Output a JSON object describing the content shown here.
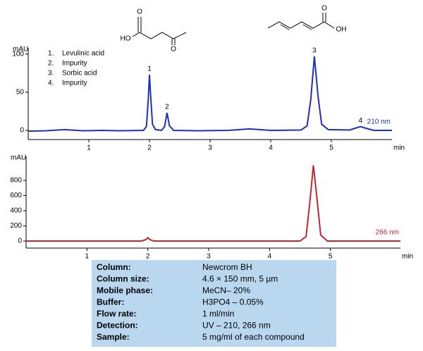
{
  "chart_data": [
    {
      "type": "line",
      "ylabel": "mAU",
      "xlabel": "min",
      "x": [
        0,
        0.3,
        0.6,
        0.9,
        1.2,
        1.5,
        1.9,
        1.95,
        1.98,
        2.0,
        2.02,
        2.05,
        2.1,
        2.2,
        2.25,
        2.29,
        2.33,
        2.4,
        2.8,
        3.3,
        3.65,
        4.0,
        4.5,
        4.6,
        4.66,
        4.72,
        4.78,
        4.84,
        4.95,
        5.3,
        5.4,
        5.48,
        5.56,
        5.7,
        6.0
      ],
      "series": [
        {
          "name": "210 nm",
          "color": "#1f2fbf",
          "values": [
            -1,
            -0.5,
            1,
            -0.5,
            0,
            -0.5,
            0,
            5,
            40,
            73,
            45,
            8,
            1,
            0,
            5,
            23,
            6,
            0,
            -0.5,
            0,
            2,
            0,
            0.5,
            6,
            40,
            97,
            45,
            8,
            1,
            0.5,
            3,
            5,
            3,
            0,
            0
          ]
        }
      ],
      "xlim": [
        0,
        6
      ],
      "xticks": [
        1,
        2,
        3,
        4,
        5
      ],
      "ylim": [
        -12,
        108
      ],
      "yticks": [
        0,
        50,
        100
      ],
      "annotations": [
        {
          "text": "1",
          "x": 2.0,
          "y": 73
        },
        {
          "text": "2",
          "x": 2.29,
          "y": 23
        },
        {
          "text": "3",
          "x": 4.72,
          "y": 97
        },
        {
          "text": "4",
          "x": 5.48,
          "y": 5
        }
      ],
      "peak_list": [
        {
          "label": "1.",
          "name": "Levulinic acid"
        },
        {
          "label": "2.",
          "name": "Impurity"
        },
        {
          "label": "3.",
          "name": "Sorbic acid"
        },
        {
          "label": "4.",
          "name": "Impurity"
        }
      ]
    },
    {
      "type": "line",
      "ylabel": "mAU",
      "xlabel": "min",
      "x": [
        0,
        1.9,
        1.97,
        2.0,
        2.03,
        2.1,
        4.5,
        4.6,
        4.66,
        4.72,
        4.78,
        4.84,
        4.95,
        6.15
      ],
      "series": [
        {
          "name": "266 nm",
          "color": "#c0282d",
          "values": [
            0,
            0,
            20,
            45,
            20,
            0,
            0,
            60,
            500,
            1000,
            550,
            80,
            0,
            0
          ]
        }
      ],
      "xlim": [
        0,
        6.15
      ],
      "xticks": [
        1,
        2,
        3,
        4,
        5
      ],
      "ylim": [
        -93,
        1116
      ],
      "yticks": [
        0,
        200,
        400,
        600,
        800
      ]
    }
  ],
  "structures": {
    "levulinic_acid": [
      "HO",
      "O",
      "O"
    ],
    "sorbic_acid": [
      "O",
      "OH"
    ]
  },
  "table": {
    "rows": [
      [
        "Column:",
        "Newcrom BH"
      ],
      [
        "Column size:",
        "4.6 × 150 mm, 5 µm"
      ],
      [
        "Mobile phase:",
        "MeCN– 20%"
      ],
      [
        "Buffer:",
        "H3PO4 – 0.05%"
      ],
      [
        "Flow rate:",
        "1 ml/min"
      ],
      [
        "Detection:",
        "UV – 210, 266 nm"
      ],
      [
        "Sample:",
        "5 mg/ml  of each compound"
      ]
    ]
  }
}
